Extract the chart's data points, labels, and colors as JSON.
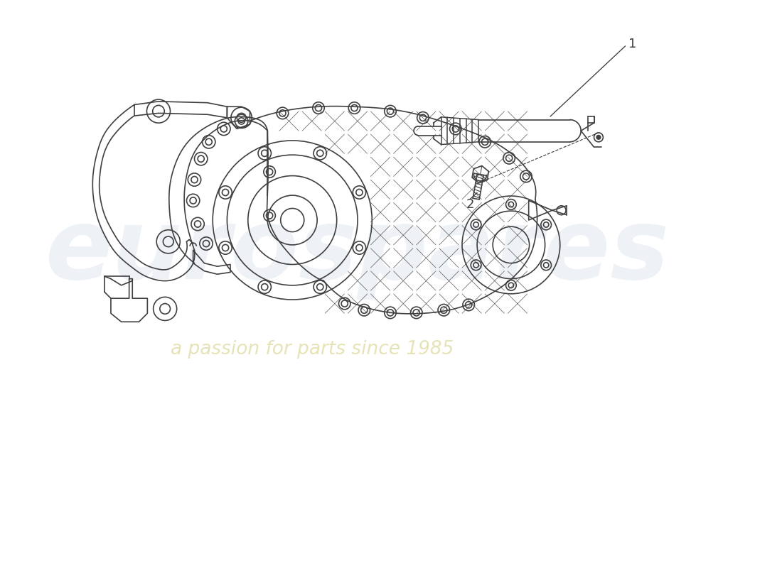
{
  "bg": "#ffffff",
  "lc": "#404040",
  "lw": 1.2,
  "wm1": "eurospares",
  "wm2": "a passion for parts since 1985",
  "wm1_color": "#aabdd0",
  "wm2_color": "#cdc870",
  "label1": "1",
  "label2": "2"
}
